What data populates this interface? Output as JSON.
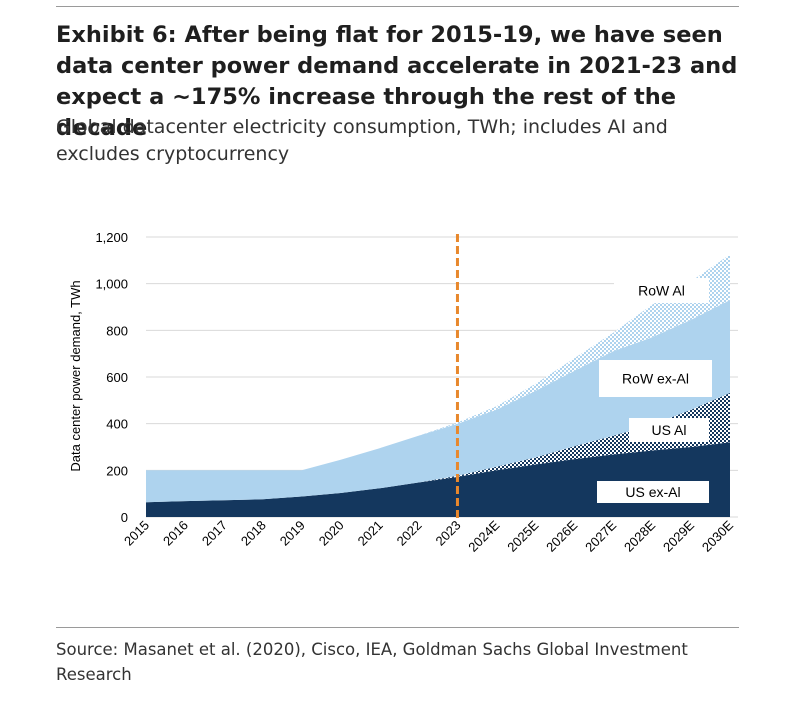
{
  "header": {
    "title": "Exhibit 6: After being flat for 2015-19, we have seen data center power demand accelerate in 2021-23 and expect a ~175% increase through the rest of the decade",
    "subtitle": "Global datacenter electricity consumption, TWh; includes AI and excludes cryptocurrency"
  },
  "footer": {
    "source": "Source: Masanet et al. (2020), Cisco, IEA, Goldman Sachs Global Investment Research"
  },
  "colors": {
    "us_ex_ai": "#14375e",
    "us_ai_a": "#14375e",
    "us_ai_b": "#ffffff",
    "row_ex_ai": "#aed3ee",
    "row_ai_a": "#aed3ee",
    "row_ai_b": "#ffffff",
    "marker": "#e8882c",
    "grid": "#d9d9d9"
  },
  "chart_data": {
    "type": "area",
    "stacked": true,
    "title": "",
    "xlabel": "",
    "ylabel": "Data center power demand, TWh",
    "ylim": [
      0,
      1200
    ],
    "yticks": [
      0,
      200,
      400,
      600,
      800,
      1000,
      1200
    ],
    "ytick_labels": [
      "0",
      "200",
      "400",
      "600",
      "800",
      "1,000",
      "1,200"
    ],
    "categories": [
      "2015",
      "2016",
      "2017",
      "2018",
      "2019",
      "2020",
      "2021",
      "2022",
      "2023",
      "2024E",
      "2025E",
      "2026E",
      "2027E",
      "2028E",
      "2029E",
      "2030E"
    ],
    "series": [
      {
        "name": "US ex-AI",
        "label": "US ex-Al",
        "values": [
          63,
          68,
          72,
          76,
          88,
          103,
          123,
          148,
          172,
          200,
          225,
          248,
          268,
          285,
          300,
          320
        ]
      },
      {
        "name": "US AI",
        "label": "US Al",
        "values": [
          0,
          0,
          0,
          0,
          0,
          0,
          0,
          0,
          5,
          15,
          30,
          55,
          80,
          110,
          160,
          212
        ]
      },
      {
        "name": "RoW ex-AI",
        "label": "RoW ex-Al",
        "values": [
          137,
          132,
          128,
          124,
          112,
          142,
          172,
          200,
          223,
          245,
          285,
          323,
          362,
          375,
          385,
          398
        ]
      },
      {
        "name": "RoW AI",
        "label": "RoW Al",
        "values": [
          0,
          0,
          0,
          0,
          0,
          0,
          0,
          0,
          5,
          15,
          30,
          54,
          80,
          140,
          165,
          195
        ]
      }
    ],
    "annotations": [
      {
        "type": "vertical-dashed-line",
        "at": "2023"
      }
    ]
  }
}
